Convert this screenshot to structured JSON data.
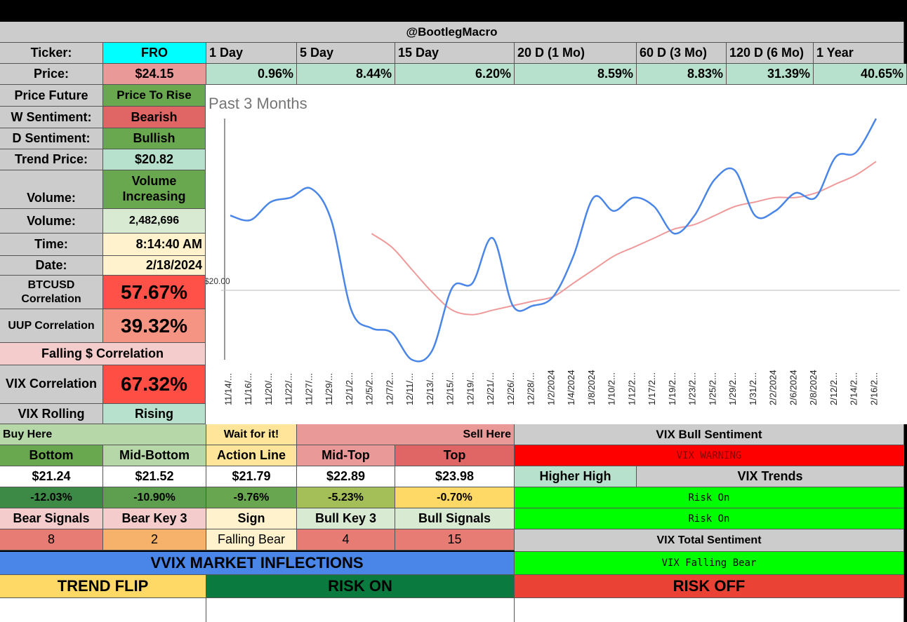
{
  "title": "@BootlegMacro",
  "ticker": {
    "label": "Ticker:",
    "value": "FRO"
  },
  "periods": [
    {
      "label": "1 Day",
      "value": "0.96%"
    },
    {
      "label": "5 Day",
      "value": "8.44%"
    },
    {
      "label": "15 Day",
      "value": "6.20%"
    },
    {
      "label": "20 D (1 Mo)",
      "value": "8.59%"
    },
    {
      "label": "60 D (3 Mo)",
      "value": "8.83%"
    },
    {
      "label": "120 D (6 Mo)",
      "value": "31.39%"
    },
    {
      "label": "1 Year",
      "value": "40.65%"
    }
  ],
  "price": {
    "label": "Price:",
    "value": "$24.15"
  },
  "stats": {
    "price_future": {
      "label": "Price Future",
      "value": "Price To Rise"
    },
    "w_sentiment": {
      "label": "W Sentiment:",
      "value": "Bearish"
    },
    "d_sentiment": {
      "label": "D Sentiment:",
      "value": "Bullish"
    },
    "trend_price": {
      "label": "Trend Price:",
      "value": "$20.82"
    },
    "volume_trend": {
      "label": "Volume:",
      "value": "Volume Increasing"
    },
    "volume": {
      "label": "Volume:",
      "value": "2,482,696"
    },
    "time": {
      "label": "Time:",
      "value": "8:14:40 AM"
    },
    "date": {
      "label": "Date:",
      "value": "2/18/2024"
    },
    "btc_corr": {
      "label": "BTCUSD Correlation",
      "value": "57.67%"
    },
    "uup_corr": {
      "label": "UUP Correlation",
      "value": "39.32%"
    },
    "falling_corr": {
      "label": "Falling $ Correlation"
    },
    "vix_corr": {
      "label": "VIX Correlation",
      "value": "67.32%"
    },
    "vix_rolling": {
      "label": "VIX Rolling",
      "value": "Rising"
    }
  },
  "levels": {
    "buy_here": "Buy Here",
    "wait": "Wait for it!",
    "sell_here": "Sell Here",
    "headers": [
      "Bottom",
      "Mid-Bottom",
      "Action Line",
      "Mid-Top",
      "Top"
    ],
    "prices": [
      "$21.24",
      "$21.52",
      "$21.79",
      "$22.89",
      "$23.98"
    ],
    "pcts": [
      "-12.03%",
      "-10.90%",
      "-9.76%",
      "-5.23%",
      "-0.70%"
    ]
  },
  "signals": {
    "headers": [
      "Bear Signals",
      "Bear Key 3",
      "Sign",
      "Bull Key 3",
      "Bull Signals"
    ],
    "values": [
      "8",
      "2",
      "Falling Bear",
      "4",
      "15"
    ]
  },
  "vix": {
    "bull_sentiment": "VIX Bull Sentiment",
    "warning": "VIX WARNING",
    "higher_high": "Higher High",
    "trends": "VIX Trends",
    "risk_on_1": "Risk On",
    "risk_on_2": "Risk On",
    "total_sentiment": "VIX Total Sentiment",
    "falling_bear": "VIX Falling Bear"
  },
  "vvix": {
    "title": "VVIX MARKET INFLECTIONS",
    "trend_flip": "TREND FLIP",
    "risk_on": "RISK ON",
    "risk_off": "RISK OFF"
  },
  "colors": {
    "header_gray": "#cccccc",
    "cyan": "#00ffff",
    "light_green": "#b7e1cd",
    "green": "#6aa84f",
    "red": "#e06666",
    "bright_green": "#00ff00",
    "bright_red": "#ff0000",
    "blue": "#4a86e8",
    "line_blue": "#4a86e8",
    "line_red": "#ef9a9a"
  },
  "chart_data": {
    "type": "line",
    "title": "Past 3 Months",
    "y_tick_label": "$20.00",
    "categories": [
      "11/14/...",
      "11/16/...",
      "11/20/...",
      "11/22/...",
      "11/27/...",
      "11/29/...",
      "12/1/2...",
      "12/5/2...",
      "12/7/2...",
      "12/11/...",
      "12/13/...",
      "12/15/...",
      "12/19/...",
      "12/21/...",
      "12/26/...",
      "12/28/...",
      "1/2/2024",
      "1/4/2024",
      "1/8/2024",
      "1/10/2...",
      "1/12/2...",
      "1/17/2...",
      "1/19/2...",
      "1/23/2...",
      "1/25/2...",
      "1/29/2...",
      "1/31/2...",
      "2/2/2024",
      "2/6/2024",
      "2/8/2024",
      "2/12/2...",
      "2/14/2...",
      "2/16/2..."
    ],
    "series": [
      {
        "name": "Price",
        "color": "#4a86e8",
        "values": [
          22.0,
          21.9,
          22.3,
          22.4,
          22.6,
          21.9,
          19.9,
          19.5,
          19.4,
          18.8,
          19.0,
          20.4,
          20.5,
          21.5,
          20.0,
          20.0,
          20.2,
          21.1,
          22.4,
          22.1,
          22.4,
          22.2,
          21.6,
          22.0,
          22.8,
          23.0,
          22.0,
          22.1,
          22.5,
          22.4,
          23.3,
          23.4,
          24.15
        ]
      },
      {
        "name": "Trend",
        "color": "#ef9a9a",
        "values": [
          null,
          null,
          null,
          null,
          null,
          null,
          null,
          21.6,
          21.3,
          20.8,
          20.3,
          19.9,
          19.8,
          19.9,
          20.0,
          20.1,
          20.2,
          20.5,
          20.8,
          21.1,
          21.3,
          21.5,
          21.7,
          21.8,
          22.0,
          22.2,
          22.3,
          22.4,
          22.4,
          22.5,
          22.7,
          22.9,
          23.2
        ]
      }
    ],
    "ylim": [
      18.8,
      24.2
    ]
  }
}
